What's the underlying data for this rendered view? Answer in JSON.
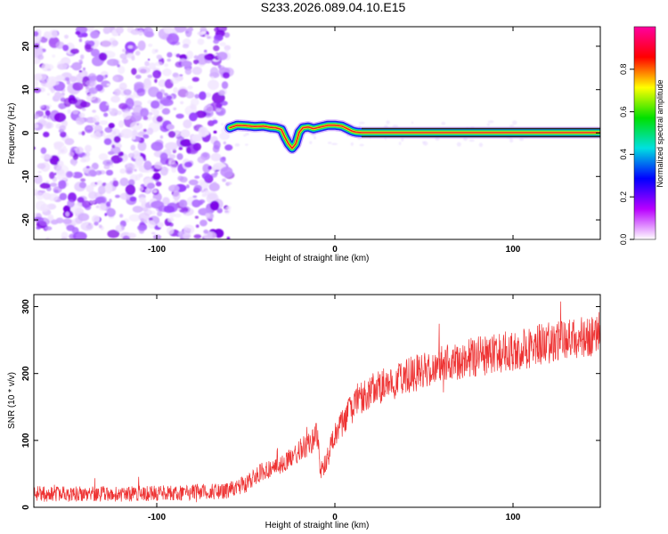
{
  "title": "S233.2026.089.04.10.E15",
  "chart_data": [
    {
      "type": "heatmap",
      "name": "spectrogram",
      "xlabel": "Height of straight line (km)",
      "ylabel": "Frequency (Hz)",
      "xlim": [
        -169,
        149
      ],
      "ylim": [
        -24.5,
        24.5
      ],
      "xticks": [
        -100,
        0,
        100
      ],
      "yticks": [
        -20,
        -10,
        0,
        10,
        20
      ],
      "noise_region_x": [
        -169,
        -59
      ],
      "trace": {
        "x": [
          -59,
          -55,
          -50,
          -45,
          -40,
          -36,
          -33,
          -30,
          -28,
          -26,
          -24,
          -22,
          -20,
          -18,
          -15,
          -12,
          -8,
          -4,
          0,
          4,
          7,
          10,
          12,
          15,
          20,
          30,
          40,
          60,
          80,
          100,
          120,
          149
        ],
        "y": [
          1.2,
          1.8,
          1.7,
          1.5,
          1.6,
          1.3,
          1.2,
          0.8,
          -1.0,
          -2.5,
          -3.5,
          -2.5,
          0.2,
          1.2,
          1.4,
          1.0,
          1.4,
          1.8,
          1.8,
          1.6,
          1.0,
          0.4,
          0.2,
          0.1,
          0.1,
          0.1,
          0.1,
          0.1,
          0.1,
          0.1,
          0.1,
          0.1
        ]
      },
      "colorbar": {
        "label": "Normalized spectral amplitude",
        "range": [
          0,
          1
        ],
        "ticks": [
          0.0,
          0.2,
          0.4,
          0.6,
          0.8
        ],
        "colors": [
          "#ffffff",
          "#b800ff",
          "#0000ff",
          "#00e0e0",
          "#00e000",
          "#ffff00",
          "#ff0000",
          "#ff00a0"
        ]
      }
    },
    {
      "type": "line",
      "name": "snr",
      "xlabel": "Height of straight line (km)",
      "ylabel": "SNR (10 * v/v)",
      "xlim": [
        -169,
        149
      ],
      "ylim": [
        0,
        318
      ],
      "xticks": [
        -100,
        0,
        100
      ],
      "yticks": [
        0,
        100,
        200,
        300
      ],
      "color": "#ee3333",
      "trend": {
        "x": [
          -169,
          -120,
          -80,
          -60,
          -50,
          -40,
          -30,
          -20,
          -14,
          -10,
          -8,
          -5,
          0,
          10,
          20,
          40,
          60,
          80,
          100,
          120,
          140,
          149
        ],
        "y": [
          20,
          20,
          22,
          25,
          35,
          55,
          65,
          85,
          95,
          110,
          55,
          65,
          110,
          150,
          175,
          195,
          215,
          225,
          235,
          245,
          255,
          260
        ]
      },
      "noise_amplitude": 18,
      "samples": 1600
    }
  ]
}
